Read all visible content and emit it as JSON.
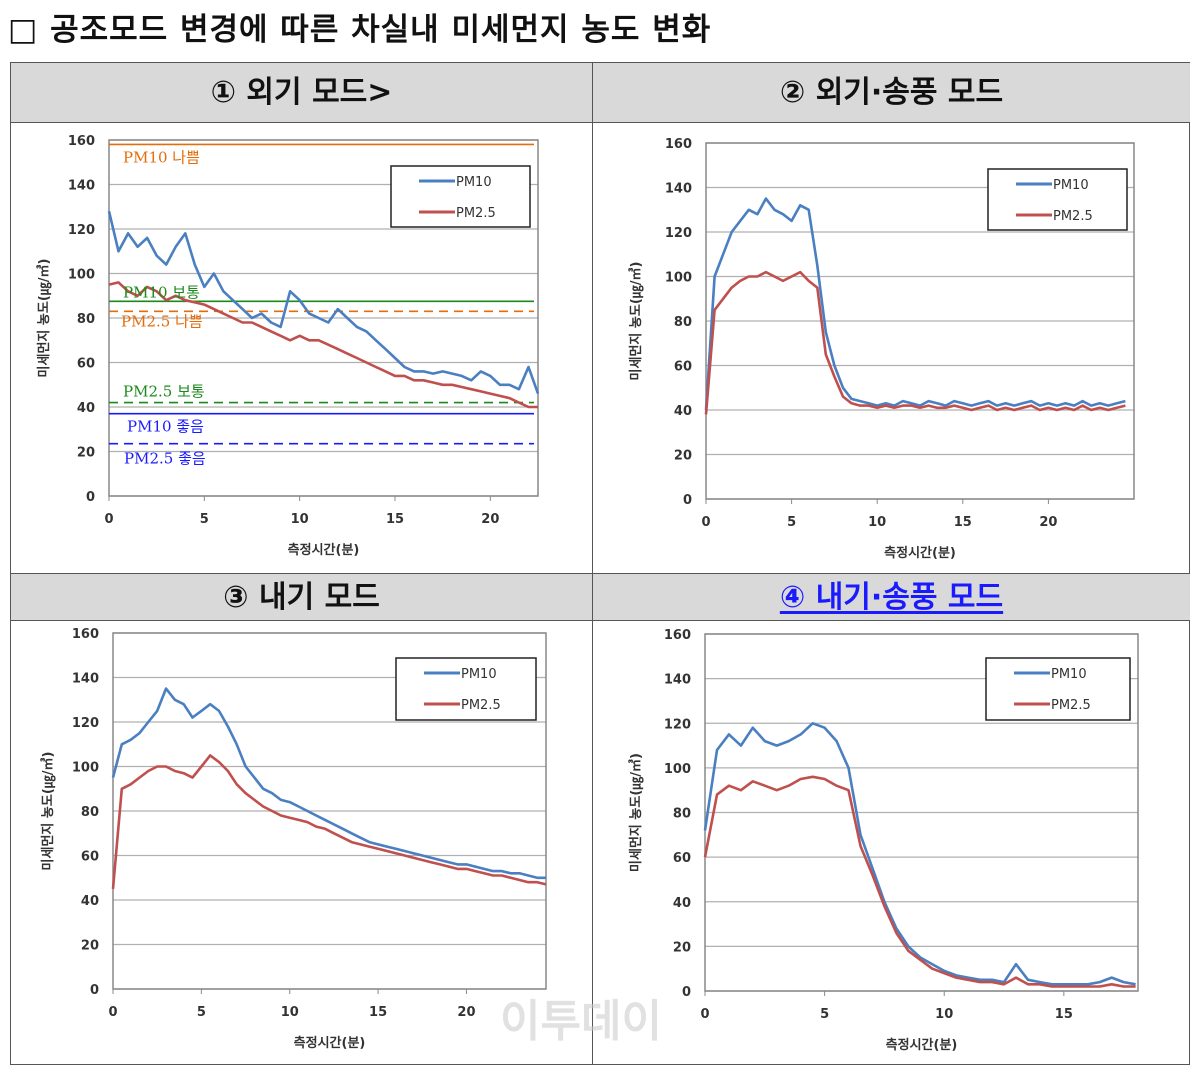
{
  "title": "□ 공조모드 변경에 따른 차실내 미세먼지 농도 변화",
  "watermark": "이투데이",
  "colors": {
    "pm10": "#4a7fc1",
    "pm25": "#c0504d",
    "header_bg": "#d9d9d9",
    "highlight": "#1a1aff"
  },
  "panels": [
    {
      "header": "① 외기 모드>"
    },
    {
      "header": "② 외기·송풍 모드"
    },
    {
      "header": "③ 내기 모드"
    },
    {
      "header": "④ 내기·송풍 모드",
      "highlighted": true
    }
  ],
  "chart_data": [
    {
      "type": "line",
      "xlabel": "측정시간(분)",
      "ylabel": "미세먼지 농도(㎍/㎥)",
      "ylim": [
        0,
        160
      ],
      "yticks": [
        0,
        20,
        40,
        60,
        80,
        100,
        120,
        140,
        160
      ],
      "xlim": [
        0,
        22.5
      ],
      "xticks": [
        0,
        5,
        10,
        15,
        20
      ],
      "grid": true,
      "legend": "top-right",
      "x_step": 0.5,
      "series": [
        {
          "name": "PM10",
          "values": [
            128,
            110,
            118,
            112,
            116,
            108,
            104,
            112,
            118,
            104,
            94,
            100,
            92,
            88,
            84,
            80,
            82,
            78,
            76,
            92,
            88,
            82,
            80,
            78,
            84,
            80,
            76,
            74,
            70,
            66,
            62,
            58,
            56,
            56,
            55,
            56,
            55,
            54,
            52,
            56,
            54,
            50,
            50,
            48,
            58,
            46
          ]
        },
        {
          "name": "PM2.5",
          "values": [
            95,
            96,
            92,
            90,
            94,
            92,
            88,
            90,
            88,
            87,
            86,
            84,
            82,
            80,
            78,
            78,
            76,
            74,
            72,
            70,
            72,
            70,
            70,
            68,
            66,
            64,
            62,
            60,
            58,
            56,
            54,
            54,
            52,
            52,
            51,
            50,
            50,
            49,
            48,
            47,
            46,
            45,
            44,
            42,
            40,
            40
          ]
        }
      ],
      "reference_lines": [
        {
          "label": "PM10 나쁨",
          "y": 158,
          "color": "#e46c0a",
          "dashed": false
        },
        {
          "label": "PM10 보통",
          "y": 87.5,
          "color": "#1a8a1a",
          "dashed": false
        },
        {
          "label": "PM2.5 나쁨",
          "y": 83,
          "color": "#e46c0a",
          "dashed": true
        },
        {
          "label": "PM2.5 보통",
          "y": 42,
          "color": "#1a8a1a",
          "dashed": true
        },
        {
          "label": "PM10 좋음",
          "y": 37,
          "color": "#1a1aff",
          "dashed": false
        },
        {
          "label": "PM2.5 좋음",
          "y": 23.5,
          "color": "#1a1aff",
          "dashed": true
        }
      ]
    },
    {
      "type": "line",
      "xlabel": "측정시간(분)",
      "ylabel": "미세먼지 농도(㎍/㎥)",
      "ylim": [
        0,
        160
      ],
      "yticks": [
        0,
        20,
        40,
        60,
        80,
        100,
        120,
        140,
        160
      ],
      "xlim": [
        0,
        25
      ],
      "xticks": [
        0,
        5,
        10,
        15,
        20
      ],
      "grid": true,
      "legend": "top-right",
      "x_step": 0.5,
      "series": [
        {
          "name": "PM10",
          "values": [
            40,
            100,
            110,
            120,
            125,
            130,
            128,
            135,
            130,
            128,
            125,
            132,
            130,
            105,
            75,
            60,
            50,
            45,
            44,
            43,
            42,
            43,
            42,
            44,
            43,
            42,
            44,
            43,
            42,
            44,
            43,
            42,
            43,
            44,
            42,
            43,
            42,
            43,
            44,
            42,
            43,
            42,
            43,
            42,
            44,
            42,
            43,
            42,
            43,
            44
          ]
        },
        {
          "name": "PM2.5",
          "values": [
            38,
            85,
            90,
            95,
            98,
            100,
            100,
            102,
            100,
            98,
            100,
            102,
            98,
            95,
            65,
            55,
            46,
            43,
            42,
            42,
            41,
            42,
            41,
            42,
            42,
            41,
            42,
            41,
            41,
            42,
            41,
            40,
            41,
            42,
            40,
            41,
            40,
            41,
            42,
            40,
            41,
            40,
            41,
            40,
            42,
            40,
            41,
            40,
            41,
            42
          ]
        }
      ]
    },
    {
      "type": "line",
      "xlabel": "측정시간(분)",
      "ylabel": "미세먼지 농도(㎍/㎥)",
      "ylim": [
        0,
        160
      ],
      "yticks": [
        0,
        20,
        40,
        60,
        80,
        100,
        120,
        140,
        160
      ],
      "xlim": [
        0,
        24.5
      ],
      "xticks": [
        0,
        5,
        10,
        15,
        20
      ],
      "grid": true,
      "legend": "top-right",
      "x_step": 0.5,
      "series": [
        {
          "name": "PM10",
          "values": [
            95,
            110,
            112,
            115,
            120,
            125,
            135,
            130,
            128,
            122,
            125,
            128,
            125,
            118,
            110,
            100,
            95,
            90,
            88,
            85,
            84,
            82,
            80,
            78,
            76,
            74,
            72,
            70,
            68,
            66,
            65,
            64,
            63,
            62,
            61,
            60,
            59,
            58,
            57,
            56,
            56,
            55,
            54,
            53,
            53,
            52,
            52,
            51,
            50,
            50
          ]
        },
        {
          "name": "PM2.5",
          "values": [
            45,
            90,
            92,
            95,
            98,
            100,
            100,
            98,
            97,
            95,
            100,
            105,
            102,
            98,
            92,
            88,
            85,
            82,
            80,
            78,
            77,
            76,
            75,
            73,
            72,
            70,
            68,
            66,
            65,
            64,
            63,
            62,
            61,
            60,
            59,
            58,
            57,
            56,
            55,
            54,
            54,
            53,
            52,
            51,
            51,
            50,
            49,
            48,
            48,
            47
          ]
        }
      ]
    },
    {
      "type": "line",
      "xlabel": "측정시간(분)",
      "ylabel": "미세먼지 농도(㎍/㎥)",
      "ylim": [
        0,
        160
      ],
      "yticks": [
        0,
        20,
        40,
        60,
        80,
        100,
        120,
        140,
        160
      ],
      "xlim": [
        0,
        18.1
      ],
      "xticks": [
        0,
        5,
        10,
        15
      ],
      "grid": true,
      "legend": "top-right",
      "x_step": 0.5,
      "series": [
        {
          "name": "PM10",
          "values": [
            72,
            108,
            115,
            110,
            118,
            112,
            110,
            112,
            115,
            120,
            118,
            112,
            100,
            70,
            55,
            40,
            28,
            20,
            15,
            12,
            9,
            7,
            6,
            5,
            5,
            4,
            12,
            5,
            4,
            3,
            3,
            3,
            3,
            4,
            6,
            4,
            3
          ]
        },
        {
          "name": "PM2.5",
          "values": [
            60,
            88,
            92,
            90,
            94,
            92,
            90,
            92,
            95,
            96,
            95,
            92,
            90,
            65,
            52,
            38,
            26,
            18,
            14,
            10,
            8,
            6,
            5,
            4,
            4,
            3,
            6,
            3,
            3,
            2,
            2,
            2,
            2,
            2,
            3,
            2,
            2
          ]
        }
      ]
    }
  ]
}
